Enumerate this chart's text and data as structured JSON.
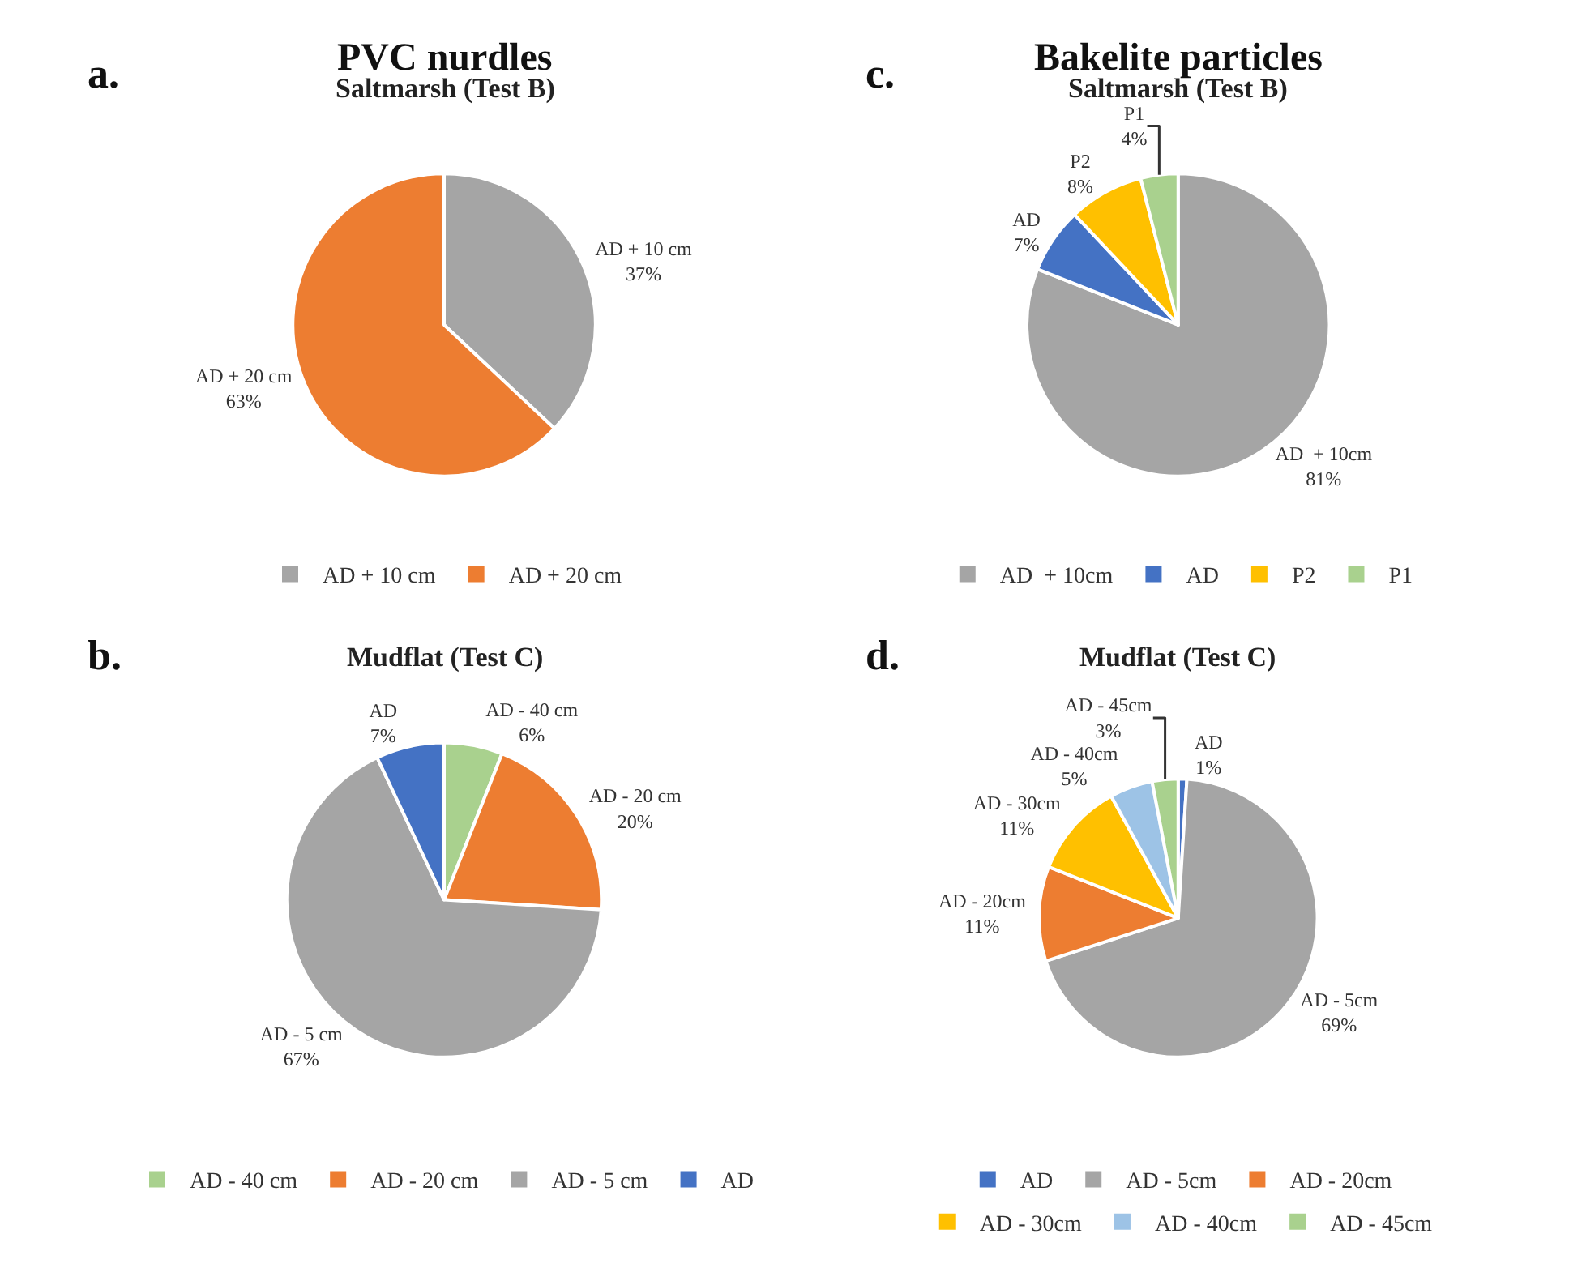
{
  "chart_data": [
    {
      "type": "pie",
      "title": "Saltmarsh (Test B)",
      "annotations": [
        "PVC nurdles",
        "a."
      ],
      "legend": "bottom",
      "categories": [
        "AD + 10 cm",
        "AD + 20 cm"
      ],
      "values": [
        37,
        63
      ],
      "colors": [
        "#a5a5a5",
        "#ed7d31"
      ],
      "value_labels": [
        "AD + 10 cm\n37%",
        "AD + 20 cm\n63%"
      ]
    },
    {
      "type": "pie",
      "title": "Mudflat (Test C)",
      "annotations": [
        "b."
      ],
      "legend": "bottom",
      "categories": [
        "AD - 40 cm",
        "AD - 20 cm",
        "AD - 5 cm",
        "AD"
      ],
      "values": [
        6,
        20,
        67,
        7
      ],
      "colors": [
        "#a9d18e",
        "#ed7d31",
        "#a5a5a5",
        "#4472c4"
      ],
      "value_labels": [
        "AD - 40 cm\n6%",
        "AD - 20 cm\n20%",
        "AD - 5 cm\n67%",
        "AD\n7%"
      ]
    },
    {
      "type": "pie",
      "title": "Saltmarsh (Test B)",
      "annotations": [
        "Bakelite particles",
        "c."
      ],
      "legend": "bottom",
      "categories": [
        "AD  + 10cm",
        "AD",
        "P2",
        "P1"
      ],
      "values": [
        81,
        7,
        8,
        4
      ],
      "colors": [
        "#a5a5a5",
        "#4472c4",
        "#ffc000",
        "#a9d18e"
      ],
      "value_labels": [
        "AD  + 10cm\n81%",
        "AD\n7%",
        "P2\n8%",
        "P1\n4%"
      ]
    },
    {
      "type": "pie",
      "title": "Mudflat (Test C)",
      "annotations": [
        "d."
      ],
      "legend": "bottom",
      "categories": [
        "AD",
        "AD - 5cm",
        "AD - 20cm",
        "AD - 30cm",
        "AD - 40cm",
        "AD - 45cm"
      ],
      "values": [
        1,
        69,
        11,
        11,
        5,
        3
      ],
      "colors": [
        "#4472c4",
        "#a5a5a5",
        "#ed7d31",
        "#ffc000",
        "#9dc3e6",
        "#a9d18e"
      ],
      "value_labels": [
        "AD\n1%",
        "AD - 5cm\n69%",
        "AD - 20cm\n11%",
        "AD - 30cm\n11%",
        "AD - 40cm\n5%",
        "AD - 45cm\n3%"
      ]
    }
  ]
}
